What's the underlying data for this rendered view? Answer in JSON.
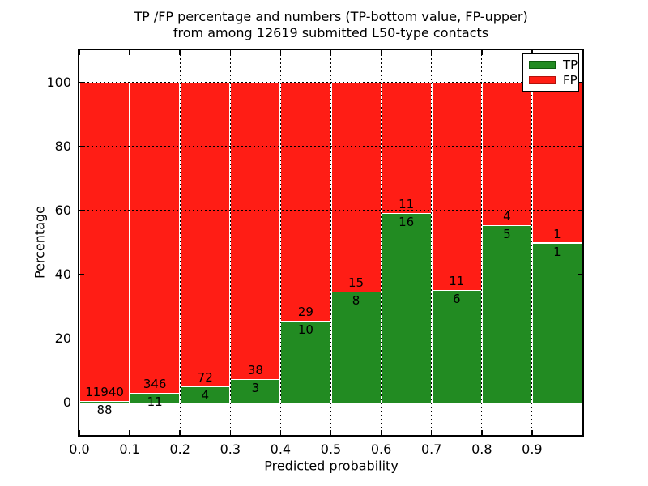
{
  "title": {
    "line1": "TP /FP percentage and numbers (TP-bottom value, FP-upper)",
    "line2": "from among 12619 submitted L50-type contacts"
  },
  "axes": {
    "xlabel": "Predicted probability",
    "ylabel": "Percentage",
    "xtick_labels": [
      "0.0",
      "0.1",
      "0.2",
      "0.3",
      "0.4",
      "0.5",
      "0.6",
      "0.7",
      "0.8",
      "0.9"
    ],
    "ytick_labels": [
      "0",
      "20",
      "40",
      "60",
      "80",
      "100"
    ],
    "ytick_values": [
      0,
      20,
      40,
      60,
      80,
      100
    ]
  },
  "legend": {
    "position": "upper right",
    "items": [
      {
        "label": "TP",
        "color": "#228B22",
        "edge": "#0c5c0c"
      },
      {
        "label": "FP",
        "color": "#FF1D15",
        "edge": "#b2120c"
      }
    ]
  },
  "colors": {
    "tp": "#228B22",
    "fp": "#FF1D15",
    "grid": "#000000",
    "bar_edge": "#ffffff",
    "background": "#ffffff"
  },
  "chart_data": {
    "type": "bar",
    "stacked": true,
    "normalized_to_percent": 100,
    "title": "TP /FP percentage and numbers (TP-bottom value, FP-upper) from among 12619 submitted L50-type contacts",
    "xlabel": "Predicted probability",
    "ylabel": "Percentage",
    "xlim": [
      0.0,
      1.0
    ],
    "ylim": [
      -10,
      110
    ],
    "grid": true,
    "legend_position": "upper right",
    "bin_width": 0.1,
    "bin_edges": [
      0.0,
      0.1,
      0.2,
      0.3,
      0.4,
      0.5,
      0.6,
      0.7,
      0.8,
      0.9,
      1.0
    ],
    "categories": [
      "0.0-0.1",
      "0.1-0.2",
      "0.2-0.3",
      "0.3-0.4",
      "0.4-0.5",
      "0.5-0.6",
      "0.6-0.7",
      "0.7-0.8",
      "0.8-0.9",
      "0.9-1.0"
    ],
    "series": [
      {
        "name": "TP",
        "color": "#228B22",
        "counts": [
          88,
          11,
          4,
          3,
          10,
          8,
          16,
          6,
          5,
          1
        ],
        "percent": [
          0.73,
          3.08,
          5.26,
          7.32,
          25.64,
          34.78,
          59.26,
          35.29,
          55.56,
          50.0
        ]
      },
      {
        "name": "FP",
        "color": "#FF1D15",
        "counts": [
          11940,
          346,
          72,
          38,
          29,
          15,
          11,
          11,
          4,
          1
        ],
        "percent": [
          99.27,
          96.92,
          94.74,
          92.68,
          74.36,
          65.22,
          40.74,
          64.71,
          44.44,
          50.0
        ]
      }
    ],
    "total_contacts": 12619
  }
}
